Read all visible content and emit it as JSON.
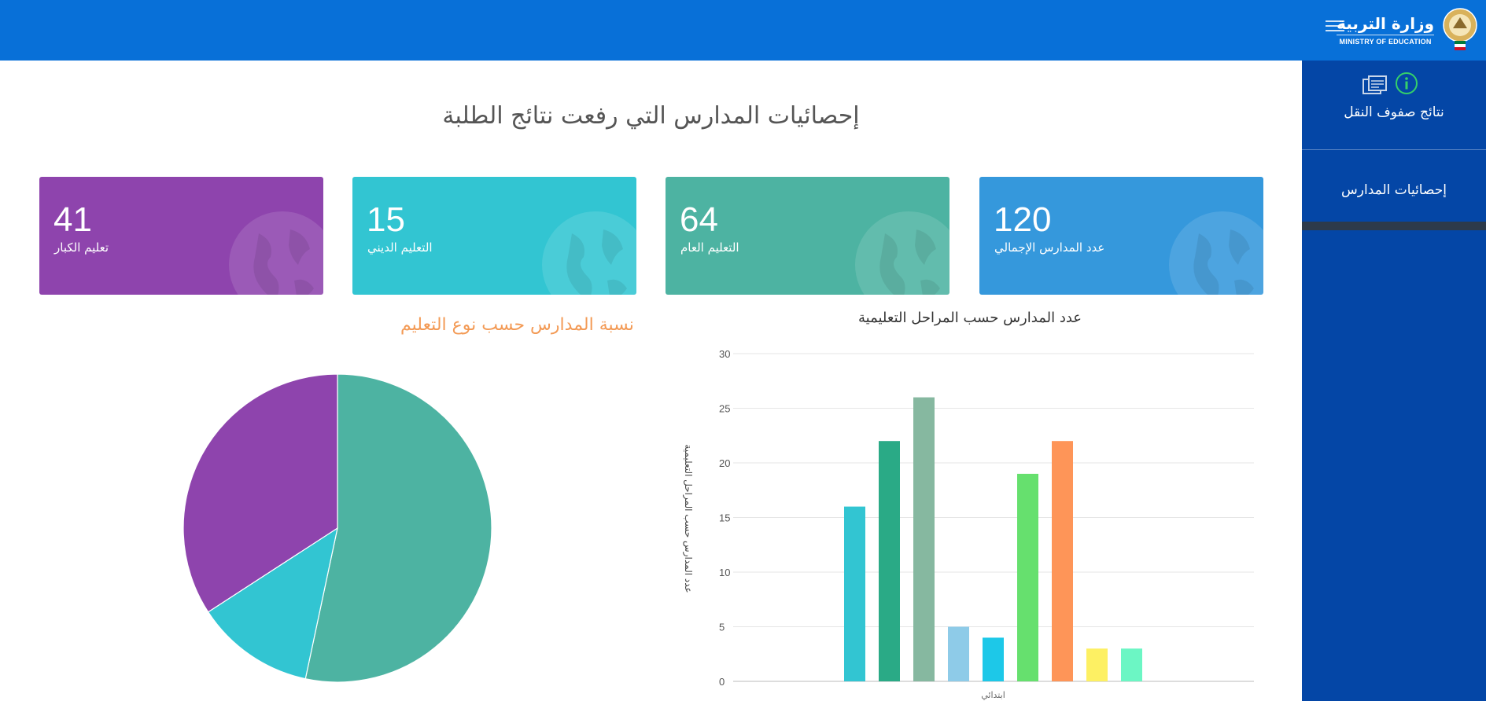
{
  "header": {
    "brand_ar": "وزارة التربية",
    "brand_en": "MINISTRY OF EDUCATION",
    "menu_icon": "hamburger-icon",
    "color": "#0870d8"
  },
  "sidebar": {
    "color": "#0446a6",
    "items": [
      {
        "label": "نتائج صفوف النقل",
        "icons": [
          "report-icon",
          "info-icon"
        ]
      },
      {
        "label": "إحصائيات المدارس"
      }
    ]
  },
  "page": {
    "title": "إحصائيات المدارس التي رفعت نتائج الطلبة"
  },
  "cards": [
    {
      "value": "120",
      "label": "عدد المدارس الإجمالي",
      "color": "#3598dc",
      "icon": "globe-icon"
    },
    {
      "value": "64",
      "label": "التعليم العام",
      "color": "#4db3a2",
      "icon": "globe-icon"
    },
    {
      "value": "15",
      "label": "التعليم الديني",
      "color": "#32c5d2",
      "icon": "globe-icon"
    },
    {
      "value": "41",
      "label": "تعليم الكبار",
      "color": "#8e44ad",
      "icon": "globe-icon"
    }
  ],
  "chart_data": [
    {
      "type": "bar",
      "title": "عدد المدارس حسب المراحل التعليمية",
      "ylabel": "عدد المدارس حسب المراحل التعليمية",
      "categories": [
        "ابتدائي"
      ],
      "ylim": [
        0,
        30
      ],
      "yticks": [
        0,
        5,
        10,
        15,
        20,
        25,
        30
      ],
      "series": [
        {
          "value": 16,
          "color": "#32c5d2"
        },
        {
          "value": 22,
          "color": "#2aaa86"
        },
        {
          "value": 26,
          "color": "#86b8a0"
        },
        {
          "value": 5,
          "color": "#8ecbe8"
        },
        {
          "value": 4,
          "color": "#1dc8e8"
        },
        {
          "value": 19,
          "color": "#66e06e"
        },
        {
          "value": 22,
          "color": "#fe9558"
        },
        {
          "value": 3,
          "color": "#fdf063"
        },
        {
          "value": 3,
          "color": "#6cf6c4"
        }
      ],
      "grid": true
    },
    {
      "type": "pie",
      "title": "نسبة المدارس حسب نوع التعليم",
      "slices": [
        {
          "label": "التعليم العام",
          "value": 64,
          "color": "#4db3a2"
        },
        {
          "label": "التعليم الديني",
          "value": 15,
          "color": "#32c5d2"
        },
        {
          "label": "تعليم الكبار",
          "value": 41,
          "color": "#8e44ad"
        }
      ]
    }
  ]
}
